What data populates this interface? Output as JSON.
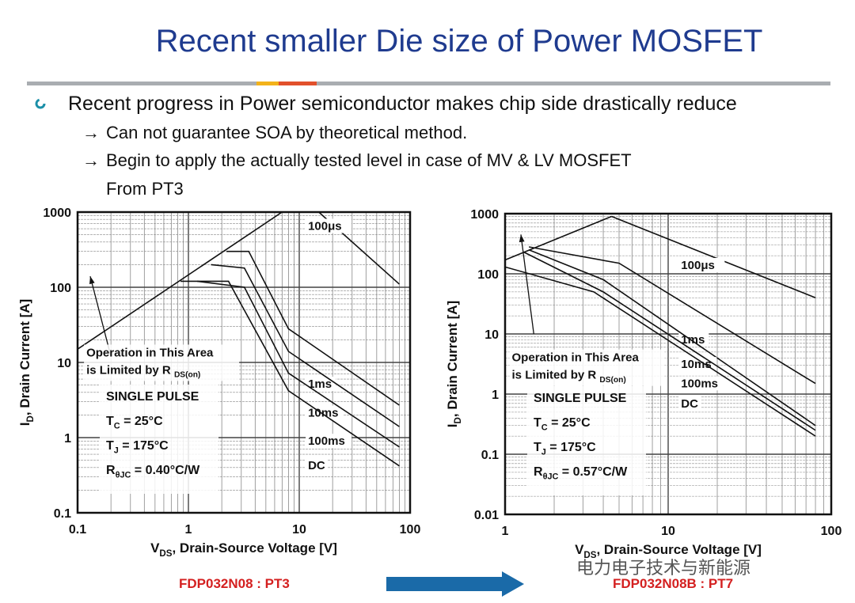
{
  "slide": {
    "title": "Recent smaller Die size of Power MOSFET",
    "bullet": "Recent progress in Power semiconductor makes chip side drastically reduce",
    "sub1": "Can not guarantee SOA by theoretical method.",
    "sub2": "Begin to apply the actually tested level in case of MV & LV MOSFET",
    "sub3": "From PT3",
    "arrow_glyph": "→",
    "left_part": "FDP032N08 : PT3",
    "right_part": "FDP032N08B : PT7",
    "watermark": "电力电子技术与新能源",
    "bullet_color": "#1b8fa8",
    "title_color": "#1f3b8f",
    "part_color": "#d42020",
    "arrow_color": "#1a6aa8"
  },
  "chart_data": [
    {
      "type": "line",
      "scale": "log-log",
      "xlabel_main": "V",
      "xlabel_sub": "DS",
      "xlabel_rest": ", Drain-Source Voltage [V]",
      "ylabel_main": "I",
      "ylabel_sub": "D",
      "ylabel_rest": ", Drain Current [A]",
      "xlim": [
        0.1,
        100
      ],
      "ylim": [
        0.1,
        1000
      ],
      "x_ticks": [
        {
          "v": 0.1,
          "t": "0.1"
        },
        {
          "v": 1,
          "t": "1"
        },
        {
          "v": 10,
          "t": "10"
        },
        {
          "v": 100,
          "t": "100"
        }
      ],
      "y_ticks": [
        {
          "v": 0.1,
          "t": "0.1"
        },
        {
          "v": 1,
          "t": "1"
        },
        {
          "v": 10,
          "t": "10"
        },
        {
          "v": 100,
          "t": "100"
        },
        {
          "v": 1000,
          "t": "1000"
        }
      ],
      "grid": true,
      "rds_line": [
        [
          0.1,
          15
        ],
        [
          7,
          1000
        ]
      ],
      "series": [
        {
          "name": "100μs",
          "label_x": 12,
          "label_y": 580,
          "points": [
            [
              7,
              1000
            ],
            [
              15,
              1000
            ],
            [
              80,
              110
            ]
          ]
        },
        {
          "name": "1ms",
          "label_x": 12,
          "label_y": 4.6,
          "points": [
            [
              2.2,
              300
            ],
            [
              3.5,
              300
            ],
            [
              8,
              28
            ],
            [
              80,
              2.7
            ]
          ]
        },
        {
          "name": "10ms",
          "label_x": 12,
          "label_y": 1.9,
          "points": [
            [
              1.6,
              200
            ],
            [
              3.2,
              180
            ],
            [
              8,
              14
            ],
            [
              80,
              1.4
            ]
          ]
        },
        {
          "name": "100ms",
          "label_x": 12,
          "label_y": 0.8,
          "points": [
            [
              1.2,
              120
            ],
            [
              3.2,
              100
            ],
            [
              8,
              7.2
            ],
            [
              80,
              0.75
            ]
          ]
        },
        {
          "name": "DC",
          "label_x": 12,
          "label_y": 0.38,
          "points": [
            [
              0.85,
              120
            ],
            [
              2.3,
              120
            ],
            [
              8,
              4.2
            ],
            [
              80,
              0.42
            ]
          ]
        }
      ],
      "annotation": {
        "line1": "Operation in This Area",
        "line2": "is Limited by R",
        "line2_sub": "DS(on)",
        "x": 0.12,
        "y": 12
      },
      "annot_arrow": [
        [
          0.2,
          12
        ],
        [
          0.13,
          140
        ]
      ],
      "conditions": [
        {
          "main": "SINGLE PULSE",
          "sub": "",
          "rest": ""
        },
        {
          "main": "T",
          "sub": "C",
          "rest": " = 25°C"
        },
        {
          "main": "T",
          "sub": "J",
          "rest": " = 175°C"
        },
        {
          "main": "R",
          "sub": "θJC",
          "rest": " = 0.40°C/W"
        }
      ]
    },
    {
      "type": "line",
      "scale": "log-log",
      "xlabel_main": "V",
      "xlabel_sub": "DS",
      "xlabel_rest": ", Drain-Source Voltage [V]",
      "ylabel_main": "I",
      "ylabel_sub": "D",
      "ylabel_rest": ", Drain Current [A]",
      "xlim": [
        1,
        100
      ],
      "ylim": [
        0.01,
        1000
      ],
      "x_ticks": [
        {
          "v": 1,
          "t": "1"
        },
        {
          "v": 10,
          "t": "10"
        },
        {
          "v": 100,
          "t": "100"
        }
      ],
      "y_ticks": [
        {
          "v": 0.01,
          "t": "0.01"
        },
        {
          "v": 0.1,
          "t": "0.1"
        },
        {
          "v": 1,
          "t": "1"
        },
        {
          "v": 10,
          "t": "10"
        },
        {
          "v": 100,
          "t": "100"
        },
        {
          "v": 1000,
          "t": "1000"
        }
      ],
      "grid": true,
      "rds_line": [
        [
          1,
          170
        ],
        [
          4.5,
          900
        ]
      ],
      "series": [
        {
          "name": "100μs",
          "label_x": 12,
          "label_y": 120,
          "points": [
            [
              4.5,
              900
            ],
            [
              80,
              40
            ]
          ]
        },
        {
          "name": "1ms",
          "label_x": 12,
          "label_y": 7,
          "points": [
            [
              1.4,
              280
            ],
            [
              5,
              150
            ],
            [
              80,
              1.5
            ]
          ]
        },
        {
          "name": "10ms",
          "label_x": 12,
          "label_y": 2.7,
          "points": [
            [
              1.4,
              250
            ],
            [
              4,
              80
            ],
            [
              80,
              0.3
            ]
          ]
        },
        {
          "name": "100ms",
          "label_x": 12,
          "label_y": 1.3,
          "points": [
            [
              1.3,
              230
            ],
            [
              4,
              50
            ],
            [
              80,
              0.25
            ]
          ]
        },
        {
          "name": "DC",
          "label_x": 12,
          "label_y": 0.6,
          "points": [
            [
              1,
              130
            ],
            [
              3.5,
              50
            ],
            [
              80,
              0.2
            ]
          ]
        }
      ],
      "annotation": {
        "line1": "Operation in This Area",
        "line2": "is Limited by R",
        "line2_sub": "DS(on)",
        "x": 1.1,
        "y": 3.5
      },
      "annot_arrow": [
        [
          1.5,
          10
        ],
        [
          1.25,
          450
        ]
      ],
      "conditions": [
        {
          "main": "SINGLE PULSE",
          "sub": "",
          "rest": ""
        },
        {
          "main": "T",
          "sub": "C",
          "rest": " = 25°C"
        },
        {
          "main": "T",
          "sub": "J",
          "rest": " = 175°C"
        },
        {
          "main": "R",
          "sub": "θJC",
          "rest": " = 0.57°C/W"
        }
      ]
    }
  ]
}
